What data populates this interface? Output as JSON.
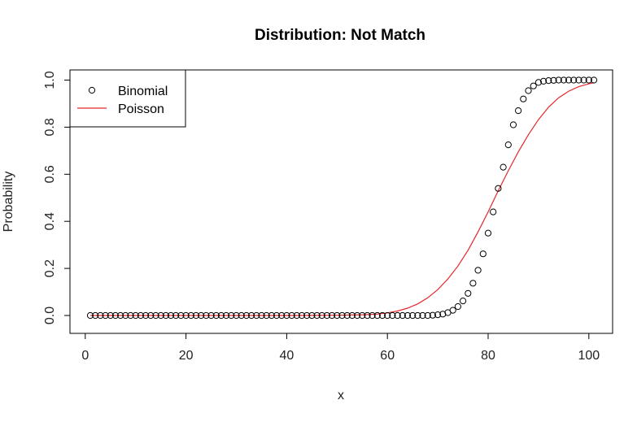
{
  "chart_data": {
    "type": "scatter",
    "title": "Distribution: Not Match",
    "xlabel": "x",
    "ylabel": "Probability",
    "xlim": [
      1,
      101
    ],
    "ylim": [
      0,
      1
    ],
    "x_ticks": [
      0,
      20,
      40,
      60,
      80,
      100
    ],
    "y_ticks": [
      0.0,
      0.2,
      0.4,
      0.6,
      0.8,
      1.0
    ],
    "x_tick_labels": [
      "0",
      "20",
      "40",
      "60",
      "80",
      "100"
    ],
    "y_tick_labels": [
      "0.0",
      "0.2",
      "0.4",
      "0.6",
      "0.8",
      "1.0"
    ],
    "grid": false,
    "legend_position": "top-left",
    "series": [
      {
        "name": "Binomial",
        "style": "points",
        "marker": "open-circle",
        "color": "#000000",
        "x": [
          1,
          2,
          3,
          4,
          5,
          6,
          7,
          8,
          9,
          10,
          11,
          12,
          13,
          14,
          15,
          16,
          17,
          18,
          19,
          20,
          21,
          22,
          23,
          24,
          25,
          26,
          27,
          28,
          29,
          30,
          31,
          32,
          33,
          34,
          35,
          36,
          37,
          38,
          39,
          40,
          41,
          42,
          43,
          44,
          45,
          46,
          47,
          48,
          49,
          50,
          51,
          52,
          53,
          54,
          55,
          56,
          57,
          58,
          59,
          60,
          61,
          62,
          63,
          64,
          65,
          66,
          67,
          68,
          69,
          70,
          71,
          72,
          73,
          74,
          75,
          76,
          77,
          78,
          79,
          80,
          81,
          82,
          83,
          84,
          85,
          86,
          87,
          88,
          89,
          90,
          91,
          92,
          93,
          94,
          95,
          96,
          97,
          98,
          99,
          100,
          101
        ],
        "y": [
          0,
          0,
          0,
          0,
          0,
          0,
          0,
          0,
          0,
          0,
          0,
          0,
          0,
          0,
          0,
          0,
          0,
          0,
          0,
          0,
          0,
          0,
          0,
          0,
          0,
          0,
          0,
          0,
          0,
          0,
          0,
          0,
          0,
          0,
          0,
          0,
          0,
          0,
          0,
          0,
          0,
          0,
          0,
          0,
          0,
          0,
          0,
          0,
          0,
          0,
          0,
          0,
          0,
          0,
          0,
          0,
          0,
          0,
          0,
          0,
          0,
          0,
          0,
          0,
          0,
          0,
          0,
          0,
          0.001,
          0.003,
          0.006,
          0.012,
          0.022,
          0.038,
          0.062,
          0.094,
          0.137,
          0.192,
          0.262,
          0.35,
          0.44,
          0.54,
          0.63,
          0.725,
          0.81,
          0.87,
          0.92,
          0.955,
          0.975,
          0.99,
          0.995,
          0.998,
          0.999,
          1,
          1,
          1,
          1,
          1,
          1,
          1,
          1
        ]
      },
      {
        "name": "Poisson",
        "style": "line",
        "color": "#e8262a",
        "x": [
          1,
          10,
          20,
          30,
          40,
          50,
          55,
          58,
          60,
          62,
          64,
          66,
          68,
          70,
          72,
          74,
          76,
          78,
          80,
          82,
          84,
          86,
          88,
          90,
          92,
          94,
          96,
          98,
          100,
          101
        ],
        "y": [
          0,
          0,
          0,
          0,
          0,
          0.001,
          0.003,
          0.006,
          0.011,
          0.019,
          0.031,
          0.049,
          0.075,
          0.11,
          0.155,
          0.21,
          0.277,
          0.355,
          0.44,
          0.53,
          0.615,
          0.695,
          0.768,
          0.832,
          0.885,
          0.925,
          0.953,
          0.972,
          0.984,
          0.989
        ]
      }
    ]
  }
}
